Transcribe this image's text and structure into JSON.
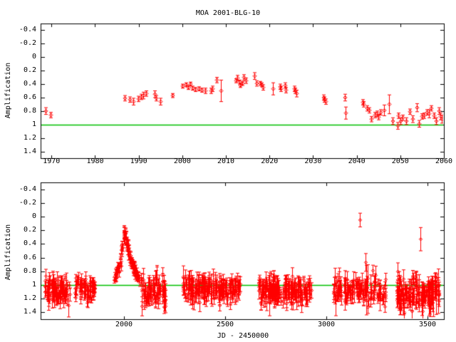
{
  "title": "MOA 2001-BLG-10",
  "colors": {
    "background": "#ffffff",
    "axis": "#000000",
    "text": "#000000",
    "data": "#ff0000",
    "reference_line": "#00c000"
  },
  "chart_data": [
    {
      "id": "top-panel",
      "type": "scatter",
      "marker": "diamond-errorbars",
      "ylabel": "Amplification",
      "xlim": [
        1967.5,
        2060
      ],
      "ylim": [
        -0.5,
        1.5
      ],
      "y_inverted": true,
      "xticks": [
        1970,
        1980,
        1990,
        2000,
        2010,
        2020,
        2030,
        2040,
        2050,
        2060
      ],
      "yticks": [
        -0.4,
        -0.2,
        0,
        0.2,
        0.4,
        0.6,
        0.8,
        1,
        1.2,
        1.4
      ],
      "reference_line_y": 1,
      "grid": false,
      "points": [
        [
          1968.6,
          0.8,
          0.05
        ],
        [
          1969.8,
          0.86,
          0.04
        ],
        [
          1986.8,
          0.61,
          0.04
        ],
        [
          1988.0,
          0.63,
          0.04
        ],
        [
          1988.7,
          0.66,
          0.05
        ],
        [
          1989.9,
          0.62,
          0.04
        ],
        [
          1990.6,
          0.59,
          0.04
        ],
        [
          1991.0,
          0.57,
          0.05
        ],
        [
          1991.7,
          0.54,
          0.04
        ],
        [
          1993.6,
          0.55,
          0.05
        ],
        [
          1993.9,
          0.61,
          0.04
        ],
        [
          1994.9,
          0.66,
          0.05
        ],
        [
          1997.7,
          0.57,
          0.03
        ],
        [
          2000.1,
          0.43,
          0.03
        ],
        [
          2000.8,
          0.41,
          0.03
        ],
        [
          2001.3,
          0.45,
          0.03
        ],
        [
          2001.8,
          0.4,
          0.03
        ],
        [
          2002.3,
          0.46,
          0.03
        ],
        [
          2002.9,
          0.48,
          0.03
        ],
        [
          2003.7,
          0.47,
          0.03
        ],
        [
          2004.5,
          0.49,
          0.03
        ],
        [
          2005.3,
          0.5,
          0.04
        ],
        [
          2006.6,
          0.5,
          0.04
        ],
        [
          2006.9,
          0.47,
          0.04
        ],
        [
          2007.8,
          0.34,
          0.04
        ],
        [
          2008.8,
          0.5,
          0.16
        ],
        [
          2012.3,
          0.35,
          0.03
        ],
        [
          2012.6,
          0.31,
          0.04
        ],
        [
          2013.1,
          0.37,
          0.03
        ],
        [
          2013.3,
          0.42,
          0.03
        ],
        [
          2013.7,
          0.39,
          0.03
        ],
        [
          2014.1,
          0.3,
          0.04
        ],
        [
          2014.5,
          0.35,
          0.04
        ],
        [
          2016.6,
          0.28,
          0.05
        ],
        [
          2017.1,
          0.39,
          0.04
        ],
        [
          2017.8,
          0.39,
          0.03
        ],
        [
          2018.1,
          0.41,
          0.03
        ],
        [
          2018.5,
          0.45,
          0.04
        ],
        [
          2020.7,
          0.47,
          0.09
        ],
        [
          2022.4,
          0.44,
          0.04
        ],
        [
          2022.6,
          0.47,
          0.04
        ],
        [
          2023.5,
          0.42,
          0.04
        ],
        [
          2023.7,
          0.49,
          0.04
        ],
        [
          2025.6,
          0.47,
          0.04
        ],
        [
          2025.9,
          0.5,
          0.04
        ],
        [
          2026.1,
          0.54,
          0.05
        ],
        [
          2032.4,
          0.6,
          0.04
        ],
        [
          2032.6,
          0.63,
          0.04
        ],
        [
          2032.9,
          0.66,
          0.04
        ],
        [
          2037.3,
          0.6,
          0.05
        ],
        [
          2037.5,
          0.83,
          0.09
        ],
        [
          2041.4,
          0.67,
          0.04
        ],
        [
          2041.6,
          0.7,
          0.04
        ],
        [
          2042.3,
          0.76,
          0.04
        ],
        [
          2042.8,
          0.79,
          0.04
        ],
        [
          2043.4,
          0.92,
          0.04
        ],
        [
          2044.2,
          0.86,
          0.04
        ],
        [
          2044.7,
          0.84,
          0.04
        ],
        [
          2045.0,
          0.89,
          0.04
        ],
        [
          2045.5,
          0.82,
          0.04
        ],
        [
          2046.3,
          0.79,
          0.08
        ],
        [
          2047.4,
          0.7,
          0.14
        ],
        [
          2048.3,
          0.95,
          0.05
        ],
        [
          2049.3,
          1.02,
          0.05
        ],
        [
          2049.6,
          0.87,
          0.04
        ],
        [
          2050.1,
          0.95,
          0.05
        ],
        [
          2050.5,
          0.9,
          0.04
        ],
        [
          2051.3,
          0.95,
          0.05
        ],
        [
          2052.1,
          0.81,
          0.04
        ],
        [
          2052.8,
          0.92,
          0.05
        ],
        [
          2053.8,
          0.75,
          0.06
        ],
        [
          2054.2,
          0.99,
          0.05
        ],
        [
          2054.9,
          0.88,
          0.04
        ],
        [
          2055.4,
          0.87,
          0.04
        ],
        [
          2056.1,
          0.82,
          0.04
        ],
        [
          2056.6,
          0.84,
          0.06
        ],
        [
          2057.1,
          0.76,
          0.04
        ],
        [
          2057.7,
          0.87,
          0.04
        ],
        [
          2058.2,
          0.95,
          0.05
        ],
        [
          2058.8,
          0.8,
          0.05
        ],
        [
          2059.2,
          0.88,
          0.05
        ],
        [
          2059.5,
          0.92,
          0.06
        ]
      ]
    },
    {
      "id": "bottom-panel",
      "type": "scatter",
      "marker": "diamond-errorbars",
      "xlabel": "JD - 2450000",
      "ylabel": "Amplification",
      "xlim": [
        1588,
        3581
      ],
      "ylim": [
        -0.5,
        1.5
      ],
      "y_inverted": true,
      "xticks": [
        2000,
        2500,
        3000,
        3500
      ],
      "yticks": [
        -0.4,
        -0.2,
        0,
        0.2,
        0.4,
        0.6,
        0.8,
        1,
        1.2,
        1.4
      ],
      "reference_line_y": 1,
      "grid": false,
      "seed": 1337,
      "baseline_clusters": [
        {
          "x0": 1605,
          "x1": 1732,
          "n": 90,
          "mean": 1.09,
          "sd": 0.085,
          "vmin": 0.87,
          "vmax": 1.3,
          "err": [
            0.04,
            0.13
          ]
        },
        {
          "x0": 1757,
          "x1": 1856,
          "n": 60,
          "mean": 1.06,
          "sd": 0.08,
          "vmin": 0.9,
          "vmax": 1.27,
          "err": [
            0.04,
            0.11
          ]
        },
        {
          "x0": 2085,
          "x1": 2205,
          "n": 75,
          "mean": 1.08,
          "sd": 0.1,
          "vmin": 0.85,
          "vmax": 1.4,
          "err": [
            0.04,
            0.14
          ]
        },
        {
          "x0": 2292,
          "x1": 2574,
          "n": 175,
          "mean": 1.06,
          "sd": 0.09,
          "vmin": 0.83,
          "vmax": 1.38,
          "err": [
            0.04,
            0.13
          ]
        },
        {
          "x0": 2665,
          "x1": 2925,
          "n": 175,
          "mean": 1.08,
          "sd": 0.095,
          "vmin": 0.82,
          "vmax": 1.42,
          "err": [
            0.04,
            0.13
          ]
        },
        {
          "x0": 3032,
          "x1": 3296,
          "n": 130,
          "mean": 1.08,
          "sd": 0.095,
          "vmin": 0.84,
          "vmax": 1.43,
          "err": [
            0.04,
            0.14
          ]
        },
        {
          "x0": 3348,
          "x1": 3560,
          "n": 145,
          "mean": 1.12,
          "sd": 0.12,
          "vmin": 0.8,
          "vmax": 1.45,
          "err": [
            0.05,
            0.15
          ]
        }
      ],
      "event_curve": [
        [
          1951,
          0.9
        ],
        [
          1958,
          0.85
        ],
        [
          1964,
          0.82
        ],
        [
          1970,
          0.78
        ],
        [
          1976,
          0.72
        ],
        [
          1981,
          0.64
        ],
        [
          1986,
          0.54
        ],
        [
          1990,
          0.44
        ],
        [
          1994,
          0.35
        ],
        [
          1998,
          0.29
        ],
        [
          2002,
          0.27
        ],
        [
          2006,
          0.3
        ],
        [
          2010,
          0.35
        ],
        [
          2015,
          0.42
        ],
        [
          2020,
          0.49
        ],
        [
          2026,
          0.56
        ],
        [
          2033,
          0.63
        ],
        [
          2040,
          0.7
        ],
        [
          2048,
          0.76
        ],
        [
          2056,
          0.82
        ],
        [
          2065,
          0.87
        ],
        [
          2075,
          0.92
        ],
        [
          2085,
          0.96
        ]
      ],
      "event_n": 95,
      "outliers": [
        [
          3167,
          0.05,
          0.1
        ],
        [
          3195,
          0.67,
          0.13
        ],
        [
          3230,
          0.79,
          0.08
        ],
        [
          3465,
          0.33,
          0.17
        ]
      ]
    }
  ]
}
